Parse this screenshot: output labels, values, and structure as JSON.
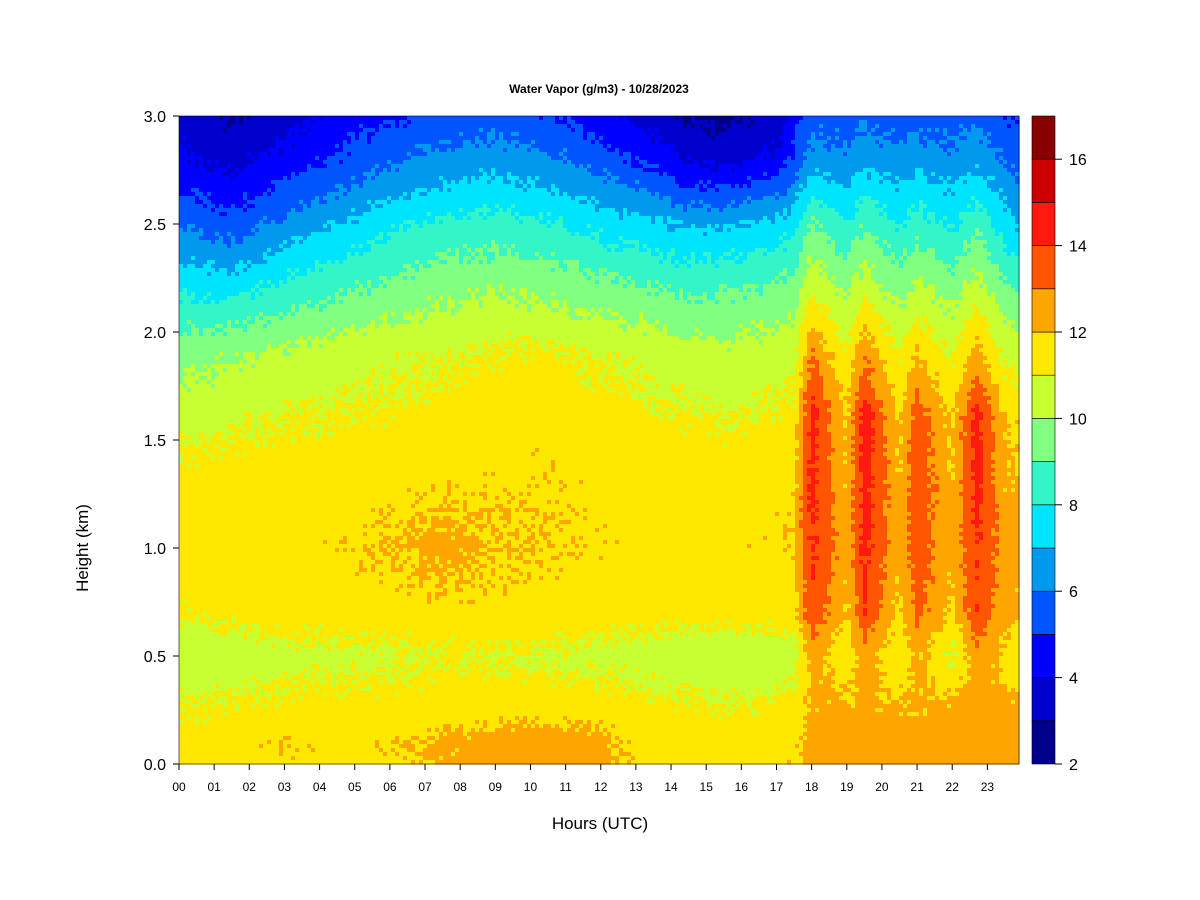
{
  "chart_data": {
    "type": "heatmap",
    "title": "Water Vapor (g/m3) - 10/28/2023",
    "xlabel": "Hours (UTC)",
    "ylabel": "Height (km)",
    "x_ticks": [
      "00",
      "01",
      "02",
      "03",
      "04",
      "05",
      "06",
      "07",
      "08",
      "09",
      "10",
      "11",
      "12",
      "13",
      "14",
      "15",
      "16",
      "17",
      "18",
      "19",
      "20",
      "21",
      "22",
      "23"
    ],
    "y_ticks": [
      "0.0",
      "0.5",
      "1.0",
      "1.5",
      "2.0",
      "2.5",
      "3.0"
    ],
    "xlim": [
      0,
      23.9
    ],
    "ylim": [
      0,
      3.0
    ],
    "colorbar": {
      "levels": [
        2,
        3,
        4,
        5,
        6,
        7,
        8,
        9,
        10,
        11,
        12,
        13,
        14,
        15,
        16,
        17
      ],
      "tick_labels": [
        "2",
        "4",
        "6",
        "8",
        "10",
        "12",
        "14",
        "16"
      ],
      "tick_values": [
        2,
        4,
        6,
        8,
        10,
        12,
        14,
        16
      ],
      "colors": [
        "#00008b",
        "#0000cd",
        "#0000ff",
        "#0055ff",
        "#0099ee",
        "#00e5ff",
        "#33f5c8",
        "#80ff80",
        "#c8ff33",
        "#ffe800",
        "#ffa500",
        "#ff5500",
        "#ff1a0d",
        "#cc0000",
        "#880000"
      ]
    },
    "x_hours": [
      0,
      1.5,
      3,
      4.5,
      6,
      7.5,
      9,
      10.5,
      12,
      13.5,
      14.5,
      15.5,
      17,
      17.5,
      18,
      19,
      19.5,
      20.5,
      21,
      22,
      22.7,
      23.5,
      23.9
    ],
    "y_heights_km": [
      0.0,
      0.1,
      0.25,
      0.5,
      0.7,
      1.0,
      1.3,
      1.6,
      1.9,
      2.2,
      2.5,
      2.8,
      3.0
    ],
    "values_g_m3": [
      [
        11.5,
        11.6,
        11.8,
        11.6,
        11.8,
        12.2,
        12.3,
        12.4,
        12.3,
        11.6,
        11.8,
        11.6,
        11.7,
        11.8,
        12.5,
        12.5,
        12.5,
        12.4,
        12.4,
        12.4,
        12.5,
        12.5,
        12.5
      ],
      [
        11.3,
        11.6,
        11.9,
        11.7,
        11.8,
        12.2,
        12.5,
        12.6,
        12.3,
        11.5,
        11.6,
        11.5,
        11.6,
        11.7,
        12.4,
        12.5,
        12.5,
        12.4,
        12.4,
        12.5,
        12.6,
        12.6,
        12.5
      ],
      [
        11.0,
        11.2,
        11.3,
        11.4,
        11.4,
        11.5,
        11.6,
        11.6,
        11.5,
        11.3,
        11.2,
        11.1,
        11.2,
        11.3,
        12.2,
        12.3,
        12.3,
        12.2,
        12.2,
        12.3,
        12.5,
        12.4,
        12.3
      ],
      [
        10.3,
        10.4,
        10.6,
        10.7,
        10.8,
        11.0,
        10.9,
        10.8,
        10.7,
        10.5,
        10.3,
        10.2,
        10.3,
        10.5,
        12.5,
        11.2,
        12.6,
        11.1,
        12.3,
        10.8,
        12.6,
        11.6,
        11.2
      ],
      [
        11.2,
        11.3,
        11.5,
        11.5,
        11.6,
        11.7,
        11.6,
        11.6,
        11.5,
        11.4,
        11.4,
        11.4,
        11.5,
        11.6,
        13.8,
        11.9,
        13.9,
        11.8,
        13.3,
        11.8,
        13.8,
        12.3,
        12.1
      ],
      [
        11.5,
        11.6,
        11.7,
        11.8,
        12.0,
        12.3,
        12.1,
        11.9,
        11.8,
        11.7,
        11.7,
        11.7,
        11.8,
        11.9,
        14.2,
        12.3,
        14.3,
        12.3,
        13.6,
        12.2,
        14.1,
        12.6,
        12.4
      ],
      [
        11.4,
        11.5,
        11.6,
        11.6,
        11.7,
        11.8,
        11.8,
        11.8,
        11.7,
        11.6,
        11.6,
        11.6,
        11.7,
        11.8,
        14.3,
        12.1,
        14.5,
        12.1,
        13.8,
        12.1,
        14.4,
        12.2,
        12.0
      ],
      [
        10.6,
        10.8,
        11.0,
        11.1,
        11.2,
        11.4,
        11.6,
        11.7,
        11.4,
        11.2,
        11.1,
        11.0,
        11.1,
        11.3,
        14.4,
        11.9,
        14.6,
        11.9,
        13.6,
        11.8,
        14.5,
        11.9,
        11.7
      ],
      [
        9.6,
        9.9,
        10.2,
        10.5,
        10.7,
        10.9,
        11.1,
        11.2,
        10.9,
        10.6,
        10.4,
        10.3,
        10.5,
        10.6,
        13.0,
        11.1,
        12.8,
        11.0,
        12.0,
        10.9,
        12.4,
        10.7,
        10.6
      ],
      [
        7.8,
        7.6,
        8.3,
        8.8,
        9.3,
        9.7,
        9.9,
        9.7,
        9.4,
        9.1,
        8.8,
        8.9,
        9.2,
        9.5,
        10.8,
        9.7,
        10.6,
        9.6,
        10.2,
        9.5,
        10.5,
        9.3,
        9.0
      ],
      [
        5.9,
        5.4,
        6.3,
        7.0,
        7.7,
        8.2,
        8.4,
        8.1,
        7.6,
        7.2,
        6.8,
        6.9,
        7.3,
        7.7,
        9.2,
        8.1,
        9.0,
        7.9,
        8.6,
        7.8,
        8.8,
        7.4,
        6.9
      ],
      [
        4.2,
        3.6,
        4.3,
        5.1,
        5.8,
        6.3,
        6.5,
        6.2,
        5.5,
        4.6,
        3.8,
        3.6,
        4.2,
        5.2,
        6.4,
        6.2,
        6.6,
        6.3,
        6.5,
        6.3,
        6.7,
        5.9,
        5.5
      ],
      [
        3.5,
        2.9,
        3.6,
        4.3,
        4.9,
        5.3,
        5.5,
        5.1,
        4.4,
        3.6,
        2.9,
        2.8,
        3.3,
        4.4,
        5.6,
        5.5,
        5.8,
        5.5,
        5.6,
        5.5,
        5.8,
        5.2,
        4.9
      ]
    ]
  }
}
